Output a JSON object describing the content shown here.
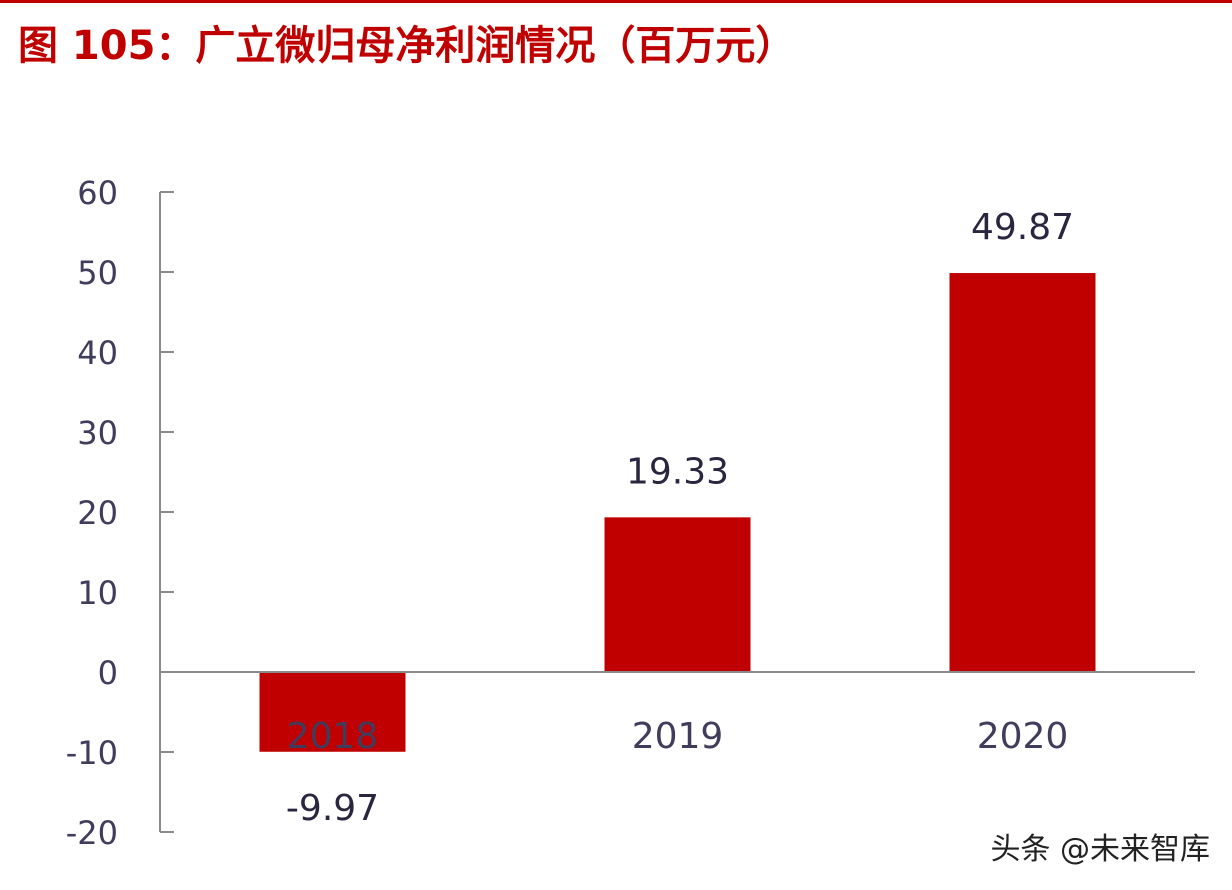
{
  "header": {
    "title": "图 105：广立微归母净利润情况（百万元）"
  },
  "watermark": {
    "text": "头条 @未来智库"
  },
  "colors": {
    "accent": "#c00000",
    "bar": "#c00000",
    "axis": "#403c5c"
  },
  "chart_data": {
    "type": "bar",
    "title": "图 105：广立微归母净利润情况（百万元）",
    "xlabel": "",
    "ylabel": "",
    "categories": [
      "2018",
      "2019",
      "2020"
    ],
    "values": [
      -9.97,
      19.33,
      49.87
    ],
    "value_labels": [
      "-9.97",
      "19.33",
      "49.87"
    ],
    "ylim": [
      -20,
      60
    ],
    "yticks": [
      60,
      50,
      40,
      30,
      20,
      10,
      0,
      -10,
      -20
    ],
    "ytick_labels": [
      "60",
      "50",
      "40",
      "30",
      "20",
      "10",
      "0",
      "-10",
      "-20"
    ],
    "grid": false,
    "legend": "none"
  }
}
